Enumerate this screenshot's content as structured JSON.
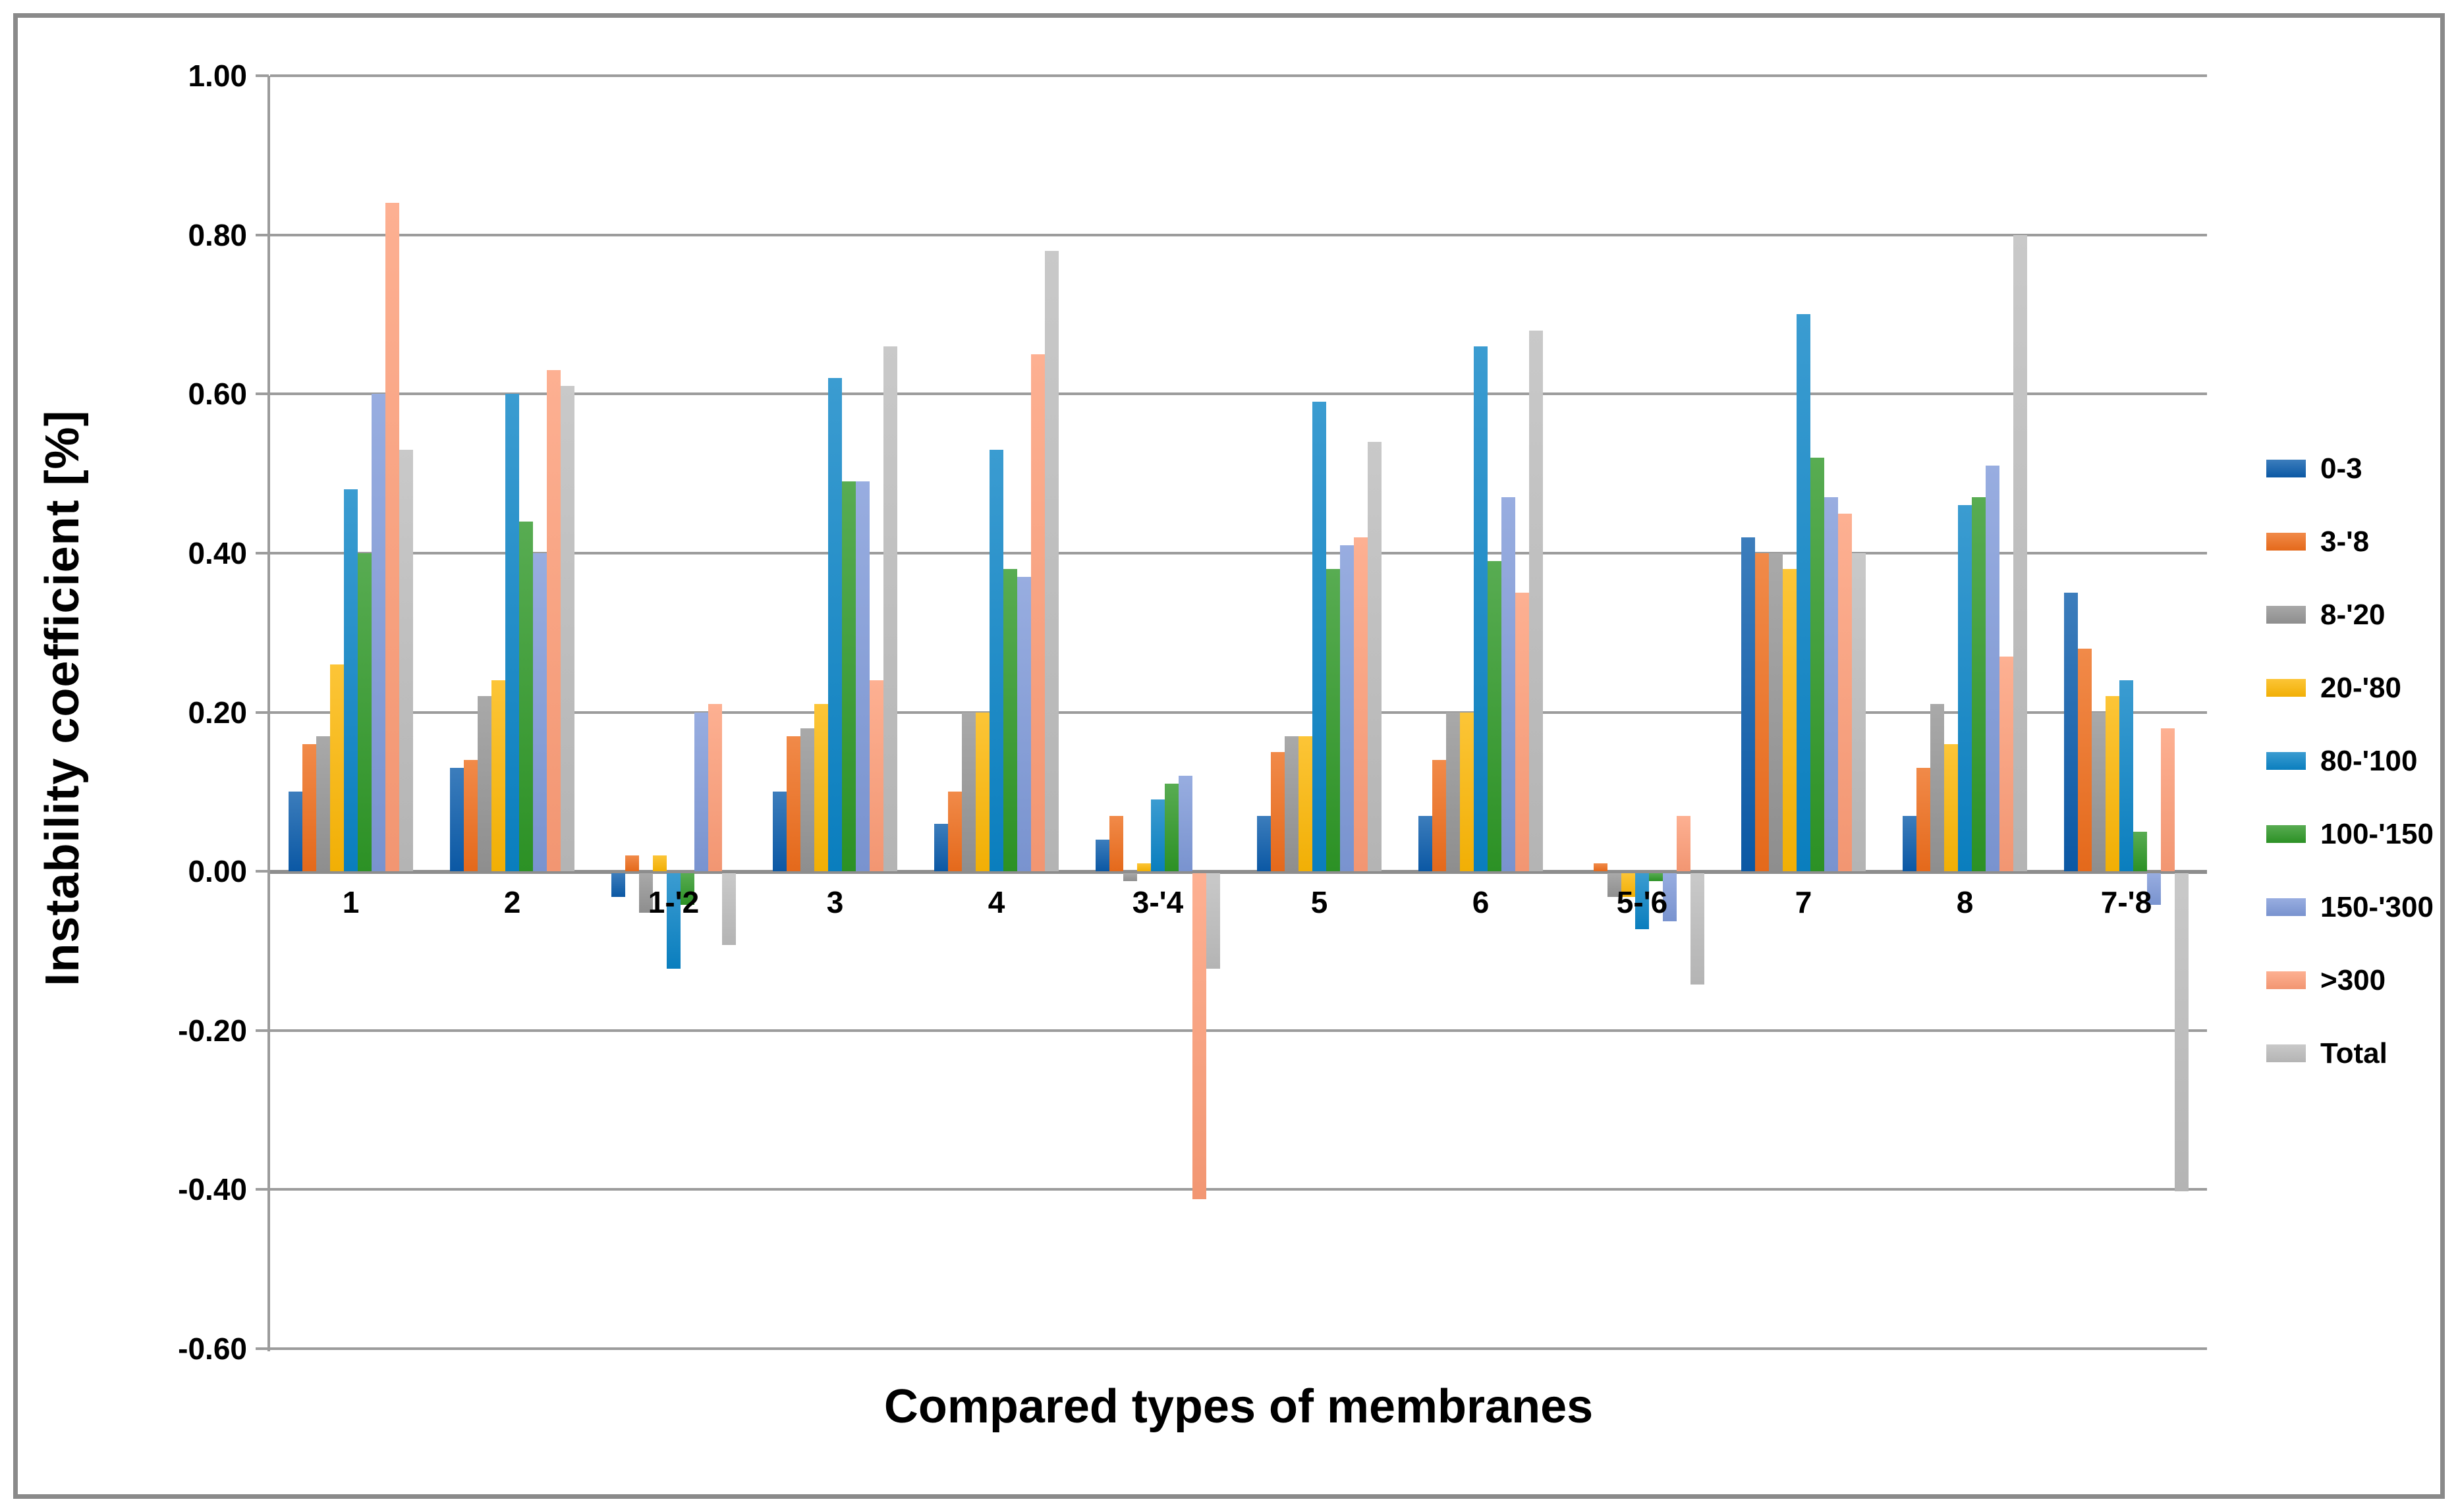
{
  "chart_data": {
    "type": "bar",
    "title": "",
    "xlabel": "Compared types of membranes",
    "ylabel": "Instability  coefficient [%]",
    "categories": [
      "1",
      "2",
      "1-'2",
      "3",
      "4",
      "3-'4",
      "5",
      "6",
      "5-'6",
      "7",
      "8",
      "7-'8"
    ],
    "series": [
      {
        "name": "0-3",
        "color": "#0B5CAB",
        "values": [
          0.1,
          0.13,
          -0.03,
          0.1,
          0.06,
          0.04,
          0.07,
          0.07,
          0.0,
          0.42,
          0.07,
          0.35
        ]
      },
      {
        "name": "3-'8",
        "color": "#ED6D1C",
        "values": [
          0.16,
          0.14,
          0.02,
          0.17,
          0.1,
          0.07,
          0.15,
          0.14,
          0.01,
          0.4,
          0.13,
          0.28
        ]
      },
      {
        "name": "8-'20",
        "color": "#949494",
        "values": [
          0.17,
          0.22,
          -0.05,
          0.18,
          0.2,
          -0.01,
          0.17,
          0.2,
          -0.03,
          0.4,
          0.21,
          0.2
        ]
      },
      {
        "name": "20-'80",
        "color": "#FBB605",
        "values": [
          0.26,
          0.24,
          0.02,
          0.21,
          0.2,
          0.01,
          0.17,
          0.2,
          -0.03,
          0.38,
          0.16,
          0.22
        ]
      },
      {
        "name": "80-'100",
        "color": "#0A83C6",
        "values": [
          0.48,
          0.6,
          -0.12,
          0.62,
          0.53,
          0.09,
          0.59,
          0.66,
          -0.07,
          0.7,
          0.46,
          0.24
        ]
      },
      {
        "name": "100-'150",
        "color": "#2E9727",
        "values": [
          0.4,
          0.44,
          -0.04,
          0.49,
          0.38,
          0.11,
          0.38,
          0.39,
          -0.01,
          0.52,
          0.47,
          0.05
        ]
      },
      {
        "name": "150-'300",
        "color": "#7E99D8",
        "values": [
          0.6,
          0.4,
          0.2,
          0.49,
          0.37,
          0.12,
          0.41,
          0.47,
          -0.06,
          0.47,
          0.51,
          -0.04
        ]
      },
      {
        "name": ">300",
        "color": "#FC9C77",
        "values": [
          0.84,
          0.63,
          0.21,
          0.24,
          0.65,
          -0.41,
          0.42,
          0.35,
          0.07,
          0.45,
          0.27,
          0.18
        ]
      },
      {
        "name": "Total",
        "color": "#BCBCBC",
        "values": [
          0.53,
          0.61,
          -0.09,
          0.66,
          0.78,
          -0.12,
          0.54,
          0.68,
          -0.14,
          0.4,
          0.8,
          -0.4
        ]
      }
    ],
    "ylim": [
      -0.6,
      1.0
    ],
    "ytick_step": 0.2,
    "y_tick_labels": [
      "1.00",
      "0.80",
      "0.60",
      "0.40",
      "0.20",
      "0.00",
      "-0.20",
      "-0.40",
      "-0.60"
    ],
    "grid": true,
    "legend_position": "right",
    "colors": {
      "gridline": "#9c9c9c",
      "zero_line": "#8d8d8d",
      "frame_border": "#8a8a8a",
      "background": "#ffffff",
      "text": "#000000"
    }
  }
}
